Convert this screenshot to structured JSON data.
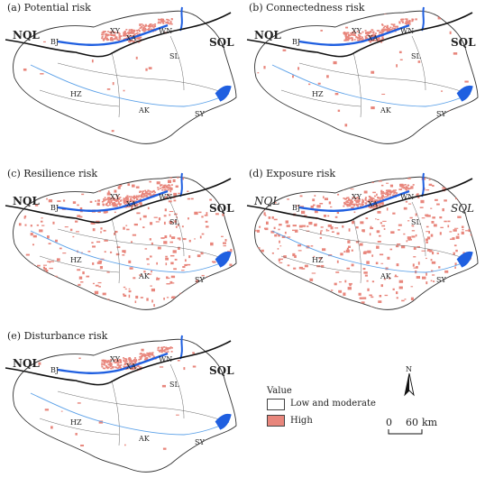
{
  "panels": [
    {
      "title": "(a) Potential risk",
      "density": 0.02,
      "italic_regions": false
    },
    {
      "title": "(b) Connectedness risk",
      "density": 0.05,
      "italic_regions": false
    },
    {
      "title": "(c) Resilience risk",
      "density": 0.45,
      "italic_regions": false
    },
    {
      "title": "(d) Exposure risk",
      "density": 0.55,
      "italic_regions": true
    },
    {
      "title": "(e) Disturbance risk",
      "density": 0.04,
      "italic_regions": false
    }
  ],
  "region_labels": {
    "nql": "NQL",
    "sql": "SQL"
  },
  "place_labels": {
    "bj": "BJ",
    "xy": "XY",
    "xa": "XA",
    "wn": "WN",
    "sl": "SL",
    "hz": "HZ",
    "ak": "AK",
    "sy": "SY"
  },
  "legend": {
    "title": "Value",
    "low_label": "Low and moderate",
    "high_label": "High",
    "low_color": "#ffffff",
    "high_color": "#e8867c"
  },
  "north_label": "N",
  "scale": {
    "start": "0",
    "end": "60",
    "unit": "km"
  },
  "colors": {
    "water": "#1f5fe0",
    "river": "#5aa0e8",
    "ridge": "#111111",
    "boundary": "#333333",
    "high": "#e8867c"
  }
}
